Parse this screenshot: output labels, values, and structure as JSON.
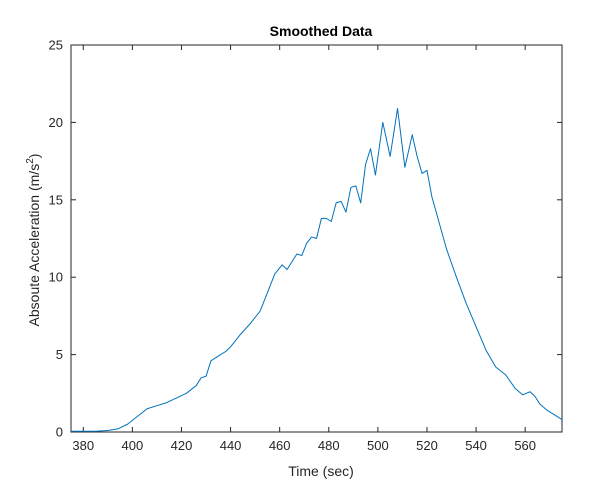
{
  "chart_data": {
    "type": "line",
    "title": "Smoothed Data",
    "xlabel": "Time (sec)",
    "ylabel": "Absoute Acceleration (m/s",
    "ylabel_sup": "2",
    "ylabel_end": ")",
    "xlim": [
      375,
      575
    ],
    "ylim": [
      0,
      25
    ],
    "grid": false,
    "x_ticks": [
      "380",
      "400",
      "420",
      "440",
      "460",
      "480",
      "500",
      "520",
      "540",
      "560"
    ],
    "y_ticks": [
      "0",
      "5",
      "10",
      "15",
      "20",
      "25"
    ],
    "line_color": "#0072BD",
    "series": [
      {
        "x": [
          375,
          385,
          390,
          394,
          398,
          402,
          406,
          410,
          414,
          418,
          422,
          426,
          428,
          430,
          432,
          434,
          436,
          438,
          440,
          444,
          448,
          452,
          455,
          458,
          461,
          463,
          465,
          467,
          469,
          471,
          473,
          475,
          477,
          479,
          481,
          483,
          485,
          487,
          489,
          491,
          493,
          495,
          497,
          499,
          502,
          505,
          508,
          511,
          514,
          516,
          518,
          520,
          522,
          525,
          528,
          532,
          536,
          540,
          544,
          548,
          552,
          556,
          559,
          562,
          564,
          566,
          569,
          572,
          575
        ],
        "y": [
          0.05,
          0.05,
          0.1,
          0.2,
          0.5,
          1.0,
          1.5,
          1.7,
          1.9,
          2.2,
          2.5,
          3.0,
          3.5,
          3.6,
          4.6,
          4.8,
          5.0,
          5.2,
          5.5,
          6.3,
          7.0,
          7.8,
          9.0,
          10.2,
          10.8,
          10.5,
          11.0,
          11.5,
          11.4,
          12.2,
          12.6,
          12.5,
          13.8,
          13.8,
          13.6,
          14.8,
          14.9,
          14.2,
          15.8,
          15.9,
          14.8,
          17.3,
          18.3,
          16.6,
          20.0,
          17.8,
          20.9,
          17.1,
          19.2,
          17.8,
          16.7,
          16.9,
          15.2,
          13.5,
          11.8,
          10.0,
          8.3,
          6.8,
          5.3,
          4.2,
          3.7,
          2.8,
          2.4,
          2.6,
          2.3,
          1.8,
          1.4,
          1.1,
          0.8
        ]
      }
    ]
  }
}
